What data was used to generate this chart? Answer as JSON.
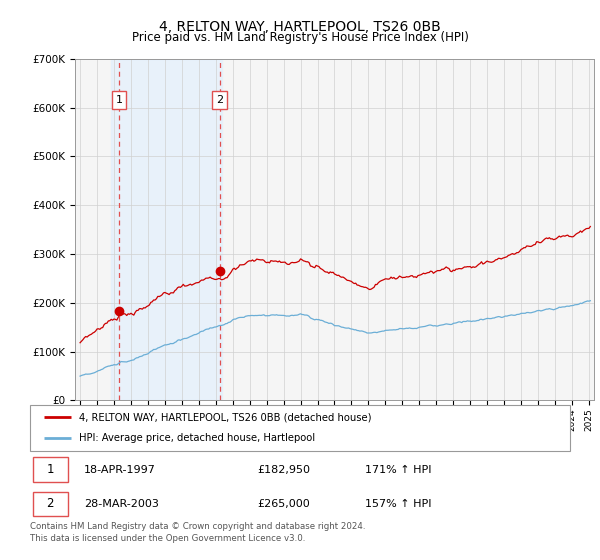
{
  "title": "4, RELTON WAY, HARTLEPOOL, TS26 0BB",
  "subtitle": "Price paid vs. HM Land Registry's House Price Index (HPI)",
  "sale1_date_num": 1997.3,
  "sale1_price": 182950,
  "sale1_label": "1",
  "sale2_date_num": 2003.24,
  "sale2_price": 265000,
  "sale2_label": "2",
  "legend_line1": "4, RELTON WAY, HARTLEPOOL, TS26 0BB (detached house)",
  "legend_line2": "HPI: Average price, detached house, Hartlepool",
  "table_row1": [
    "1",
    "18-APR-1997",
    "£182,950",
    "171% ↑ HPI"
  ],
  "table_row2": [
    "2",
    "28-MAR-2003",
    "£265,000",
    "157% ↑ HPI"
  ],
  "footnote": "Contains HM Land Registry data © Crown copyright and database right 2024.\nThis data is licensed under the Open Government Licence v3.0.",
  "hpi_color": "#6baed6",
  "price_color": "#cc0000",
  "vline_color": "#e05050",
  "shade_color": "#ddeeff",
  "ylim": [
    0,
    700000
  ],
  "xlim_start": 1994.7,
  "xlim_end": 2025.3,
  "background_color": "#ffffff"
}
